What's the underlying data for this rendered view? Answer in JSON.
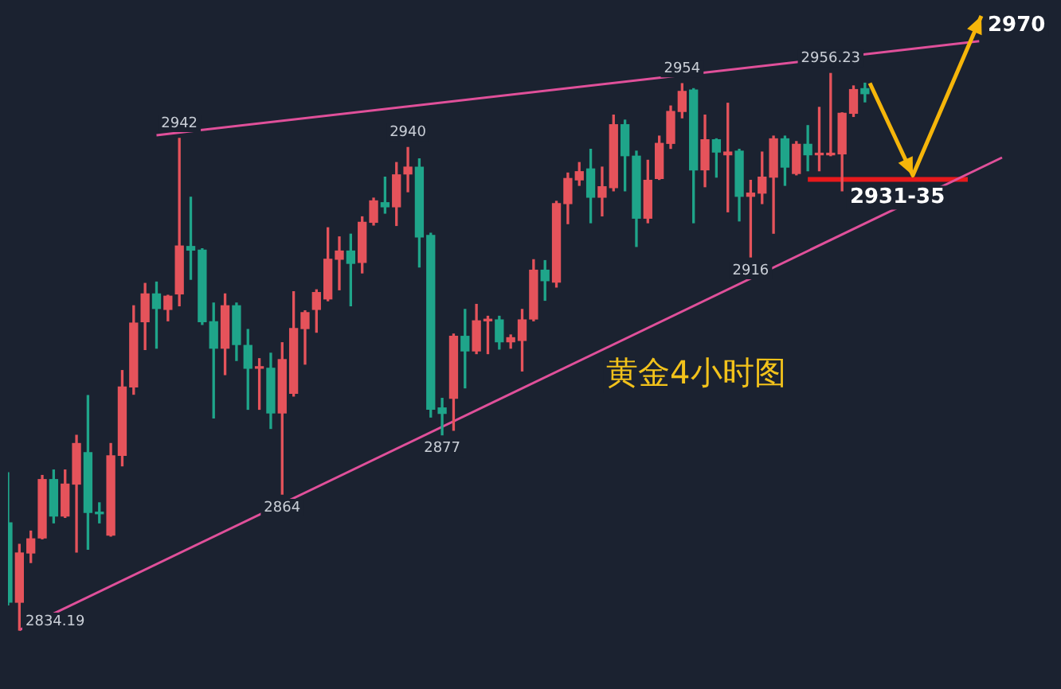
{
  "chart_data": {
    "type": "candlestick",
    "categories": [
      null,
      null,
      null,
      null,
      null,
      null,
      null,
      null,
      null,
      null,
      null,
      null,
      null,
      null,
      null,
      null,
      null,
      null,
      null,
      null,
      null,
      null,
      null,
      null,
      null,
      null,
      null,
      null,
      null,
      null,
      null,
      null,
      null,
      null,
      null,
      null,
      null,
      null,
      null,
      null,
      null,
      null,
      null,
      null,
      null,
      null,
      null,
      null,
      null,
      null,
      null,
      null,
      null,
      null,
      null,
      null,
      null,
      null,
      null,
      null,
      null,
      null,
      null,
      null,
      null,
      null,
      null,
      null,
      null,
      null,
      null,
      null,
      null,
      null,
      null,
      null,
      null,
      null,
      null,
      null,
      null,
      null,
      null,
      null,
      null,
      null,
      null,
      null
    ],
    "ohlc": [
      [
        2857.7,
        2868.7,
        2839.7,
        2840.3
      ],
      [
        2840.3,
        2853.0,
        2834.19,
        2851.1
      ],
      [
        2851.1,
        2855.9,
        2849.0,
        2854.2
      ],
      [
        2854.4,
        2868.1,
        2854.2,
        2867.2
      ],
      [
        2867.2,
        2869.3,
        2857.7,
        2859.2
      ],
      [
        2859.2,
        2869.3,
        2858.9,
        2866.2
      ],
      [
        2866.2,
        2876.9,
        2851.3,
        2875.1
      ],
      [
        2873.1,
        2885.6,
        2851.9,
        2860.0
      ],
      [
        2859.8,
        2862.1,
        2857.7,
        2859.7
      ],
      [
        2855.0,
        2875.1,
        2854.8,
        2872.4
      ],
      [
        2872.5,
        2891.1,
        2870.2,
        2887.5
      ],
      [
        2887.5,
        2905.3,
        2885.9,
        2901.5
      ],
      [
        2901.8,
        2910.2,
        2895.7,
        2907.9
      ],
      [
        2907.9,
        2910.5,
        2896.0,
        2904.7
      ],
      [
        2904.5,
        2907.6,
        2902.0,
        2907.4
      ],
      [
        2907.9,
        2942,
        2905.3,
        2918.4
      ],
      [
        2918.3,
        2929.1,
        2911.1,
        2917.5
      ],
      [
        2917.5,
        2917.8,
        2901.2,
        2901.8
      ],
      [
        2901.8,
        2905.9,
        2880.7,
        2896.0
      ],
      [
        2896.0,
        2907.9,
        2890.2,
        2905.3
      ],
      [
        2905.3,
        2905.9,
        2893.3,
        2896.8
      ],
      [
        2896.6,
        2900.1,
        2882.6,
        2891.6
      ],
      [
        2891.6,
        2893.7,
        2882.6,
        2891.8
      ],
      [
        2891.6,
        2894.9,
        2878.4,
        2881.8
      ],
      [
        2881.8,
        2897.2,
        2864,
        2893.5
      ],
      [
        2886.1,
        2908.4,
        2885.5,
        2900.3
      ],
      [
        2900.3,
        2904.2,
        2892.5,
        2903.8
      ],
      [
        2904.5,
        2908.8,
        2899.5,
        2908.2
      ],
      [
        2906.8,
        2922.4,
        2906.4,
        2915.5
      ],
      [
        2915.5,
        2920.4,
        2908.8,
        2917.3
      ],
      [
        2917.3,
        2921.0,
        2905.3,
        2914.6
      ],
      [
        2914.8,
        2924.8,
        2912.5,
        2923.6
      ],
      [
        2923.6,
        2928.9,
        2923.0,
        2928.3
      ],
      [
        2927.9,
        2933.5,
        2925.6,
        2927.0
      ],
      [
        2927.0,
        2936.7,
        2922.9,
        2934.0
      ],
      [
        2934.2,
        2940,
        2930.3,
        2935.7
      ],
      [
        2935.7,
        2937.5,
        2913.8,
        2920.4
      ],
      [
        2920.7,
        2921.2,
        2880.9,
        2882.6
      ],
      [
        2882.9,
        2885.0,
        2877,
        2881.7
      ],
      [
        2885.0,
        2899.1,
        2878.0,
        2898.6
      ],
      [
        2898.6,
        2904.5,
        2887.3,
        2895.4
      ],
      [
        2895.4,
        2905.6,
        2894.8,
        2902.0
      ],
      [
        2902.0,
        2903.0,
        2894.8,
        2902.3
      ],
      [
        2902.2,
        2903.0,
        2895.8,
        2897.4
      ],
      [
        2897.4,
        2898.9,
        2896.0,
        2898.3
      ],
      [
        2897.7,
        2904.5,
        2891.0,
        2902.2
      ],
      [
        2902.4,
        2915.4,
        2902.0,
        2913.1
      ],
      [
        2913.1,
        2915.2,
        2906.5,
        2910.8
      ],
      [
        2910.5,
        2928.2,
        2909.4,
        2927.7
      ],
      [
        2927.7,
        2934.4,
        2923.3,
        2933.2
      ],
      [
        2932.9,
        2936.7,
        2931.7,
        2934.7
      ],
      [
        2935.3,
        2939.6,
        2923.5,
        2929.1
      ],
      [
        2929.1,
        2935.7,
        2925.0,
        2931.4
      ],
      [
        2931.2,
        2947.1,
        2930.5,
        2945.0
      ],
      [
        2945.0,
        2946.0,
        2930.5,
        2938.2
      ],
      [
        2938.1,
        2939.2,
        2918.3,
        2924.5
      ],
      [
        2924.5,
        2937.2,
        2923.5,
        2932.8
      ],
      [
        2933.2,
        2942.5,
        2933.0,
        2940.9
      ],
      [
        2940.9,
        2949.1,
        2939.8,
        2947.9
      ],
      [
        2947.9,
        2954,
        2946.5,
        2952.3
      ],
      [
        2952.6,
        2952.9,
        2923.5,
        2935.1
      ],
      [
        2935.1,
        2947.1,
        2931.4,
        2941.7
      ],
      [
        2941.7,
        2941.9,
        2933.5,
        2939.0
      ],
      [
        2938.4,
        2949.7,
        2925.9,
        2939.0
      ],
      [
        2939.2,
        2939.6,
        2923.9,
        2929.3
      ],
      [
        2929.3,
        2932.8,
        2916,
        2930.0
      ],
      [
        2930.0,
        2939.0,
        2927.7,
        2933.5
      ],
      [
        2933.5,
        2942.5,
        2921.2,
        2941.9
      ],
      [
        2941.9,
        2942.5,
        2931.7,
        2935.7
      ],
      [
        2934.3,
        2941.3,
        2934.0,
        2940.7
      ],
      [
        2940.7,
        2944.8,
        2934.9,
        2938.4
      ],
      [
        2938.4,
        2948.8,
        2934.9,
        2938.7
      ],
      [
        2938.4,
        2956.23,
        2938.2,
        2938.6
      ],
      [
        2938.6,
        2947.6,
        2930.5,
        2947.5
      ],
      [
        2947.5,
        2953.5,
        2946.8,
        2952.7
      ],
      [
        2952.9,
        2954.1,
        2950.0,
        2951.8
      ],
      null,
      null,
      null,
      null,
      null,
      null,
      null,
      null,
      null,
      null,
      null,
      null
    ],
    "colors": [
      "#1fa58a",
      "#e5535b",
      "#e5535b",
      "#e5535b",
      "#1fa58a",
      "#e5535b",
      "#e5535b",
      "#1fa58a",
      "#1fa58a",
      "#e5535b",
      "#e5535b",
      "#e5535b",
      "#e5535b",
      "#1fa58a",
      "#e5535b",
      "#e5535b",
      "#1fa58a",
      "#1fa58a",
      "#1fa58a",
      "#e5535b",
      "#1fa58a",
      "#1fa58a",
      "#e5535b",
      "#1fa58a",
      "#e5535b",
      "#e5535b",
      "#e5535b",
      "#e5535b",
      "#e5535b",
      "#e5535b",
      "#1fa58a",
      "#e5535b",
      "#e5535b",
      "#1fa58a",
      "#e5535b",
      "#e5535b",
      "#1fa58a",
      "#1fa58a",
      "#1fa58a",
      "#e5535b",
      "#1fa58a",
      "#e5535b",
      "#e5535b",
      "#1fa58a",
      "#e5535b",
      "#e5535b",
      "#e5535b",
      "#1fa58a",
      "#e5535b",
      "#e5535b",
      "#e5535b",
      "#1fa58a",
      "#e5535b",
      "#e5535b",
      "#1fa58a",
      "#1fa58a",
      "#e5535b",
      "#e5535b",
      "#e5535b",
      "#e5535b",
      "#1fa58a",
      "#e5535b",
      "#1fa58a",
      "#e5535b",
      "#1fa58a",
      "#e5535b",
      "#e5535b",
      "#e5535b",
      "#1fa58a",
      "#e5535b",
      "#1fa58a",
      "#e5535b",
      "#e5535b",
      "#e5535b",
      "#e5535b",
      "#1fa58a",
      null,
      null,
      null,
      null,
      null,
      null,
      null,
      null,
      null,
      null,
      null,
      null
    ],
    "series": [
      {
        "type": "line",
        "color": "#e0509a",
        "values": [
          null,
          null,
          null,
          null,
          null,
          null,
          null,
          null,
          null,
          null,
          null,
          null,
          null,
          2942.7,
          null,
          null,
          null,
          null,
          null,
          null,
          null,
          null,
          null,
          null,
          null,
          null,
          null,
          null,
          null,
          null,
          null,
          null,
          null,
          null,
          null,
          null,
          null,
          null,
          null,
          null,
          null,
          null,
          null,
          null,
          null,
          null,
          null,
          null,
          null,
          null,
          null,
          null,
          null,
          null,
          null,
          null,
          null,
          null,
          null,
          null,
          null,
          null,
          null,
          null,
          null,
          null,
          null,
          null,
          null,
          null,
          null,
          null,
          null,
          null,
          null,
          null,
          null,
          null,
          null,
          null,
          null,
          null,
          null,
          null,
          null,
          2963.3,
          null,
          null
        ]
      },
      {
        "type": "line",
        "color": "#e0509a",
        "values": [
          null,
          2834.2,
          null,
          null,
          null,
          null,
          null,
          null,
          null,
          null,
          null,
          null,
          null,
          null,
          null,
          null,
          null,
          null,
          null,
          null,
          null,
          null,
          null,
          null,
          null,
          null,
          null,
          null,
          null,
          null,
          null,
          null,
          null,
          null,
          null,
          null,
          null,
          null,
          null,
          null,
          null,
          null,
          null,
          null,
          null,
          null,
          null,
          null,
          null,
          null,
          null,
          null,
          null,
          null,
          null,
          null,
          null,
          null,
          null,
          null,
          null,
          null,
          null,
          null,
          null,
          null,
          null,
          null,
          null,
          null,
          null,
          null,
          null,
          null,
          null,
          null,
          null,
          null,
          null,
          null,
          null,
          null,
          null,
          null,
          null,
          null,
          null,
          2937.8
        ]
      },
      {
        "type": "line",
        "color": "#e8191c",
        "values": [
          null,
          null,
          null,
          null,
          null,
          null,
          null,
          null,
          null,
          null,
          null,
          null,
          null,
          null,
          null,
          null,
          null,
          null,
          null,
          null,
          null,
          null,
          null,
          null,
          null,
          null,
          null,
          null,
          null,
          null,
          null,
          null,
          null,
          null,
          null,
          null,
          null,
          null,
          null,
          null,
          null,
          null,
          null,
          null,
          null,
          null,
          null,
          null,
          null,
          null,
          null,
          null,
          null,
          null,
          null,
          null,
          null,
          null,
          null,
          null,
          null,
          null,
          null,
          null,
          null,
          null,
          null,
          null,
          null,
          null,
          2933,
          null,
          null,
          null,
          null,
          null,
          null,
          null,
          null,
          null,
          null,
          null,
          null,
          null,
          2933,
          null,
          null,
          null
        ]
      }
    ],
    "annotations": [
      "黄金4小时图",
      {
        "text": "2942",
        "y": 2942
      },
      {
        "text": "2940",
        "y": 2940
      },
      {
        "text": "2954",
        "y": 2954
      },
      {
        "text": "2956.23",
        "y": 2956.23
      },
      {
        "text": "2916",
        "y": 2916
      },
      {
        "text": "2877",
        "y": 2877
      },
      {
        "text": "2864",
        "y": 2864
      },
      "2834.19",
      {
        "text": "2931-35",
        "y": 2933
      },
      "2970"
    ]
  }
}
